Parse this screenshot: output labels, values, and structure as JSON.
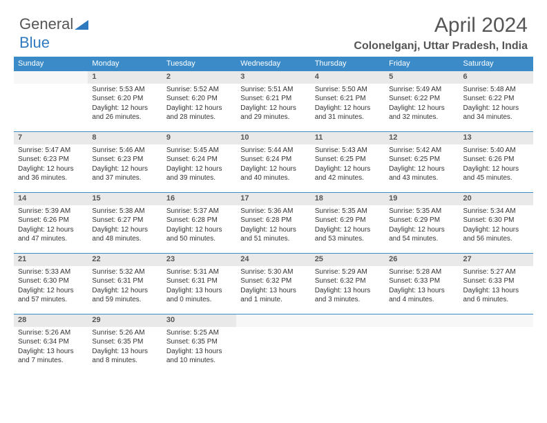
{
  "logo": {
    "text1": "General",
    "text2": "Blue"
  },
  "title": "April 2024",
  "location": "Colonelganj, Uttar Pradesh, India",
  "headers": [
    "Sunday",
    "Monday",
    "Tuesday",
    "Wednesday",
    "Thursday",
    "Friday",
    "Saturday"
  ],
  "colors": {
    "header_bg": "#3b8bc9",
    "header_text": "#ffffff",
    "daynum_bg": "#e9e9e9",
    "border": "#3b8bc9",
    "text": "#333333",
    "title_text": "#555555"
  },
  "weeks": [
    [
      {
        "empty": true
      },
      {
        "num": "1",
        "sunrise": "Sunrise: 5:53 AM",
        "sunset": "Sunset: 6:20 PM",
        "day1": "Daylight: 12 hours",
        "day2": "and 26 minutes."
      },
      {
        "num": "2",
        "sunrise": "Sunrise: 5:52 AM",
        "sunset": "Sunset: 6:20 PM",
        "day1": "Daylight: 12 hours",
        "day2": "and 28 minutes."
      },
      {
        "num": "3",
        "sunrise": "Sunrise: 5:51 AM",
        "sunset": "Sunset: 6:21 PM",
        "day1": "Daylight: 12 hours",
        "day2": "and 29 minutes."
      },
      {
        "num": "4",
        "sunrise": "Sunrise: 5:50 AM",
        "sunset": "Sunset: 6:21 PM",
        "day1": "Daylight: 12 hours",
        "day2": "and 31 minutes."
      },
      {
        "num": "5",
        "sunrise": "Sunrise: 5:49 AM",
        "sunset": "Sunset: 6:22 PM",
        "day1": "Daylight: 12 hours",
        "day2": "and 32 minutes."
      },
      {
        "num": "6",
        "sunrise": "Sunrise: 5:48 AM",
        "sunset": "Sunset: 6:22 PM",
        "day1": "Daylight: 12 hours",
        "day2": "and 34 minutes."
      }
    ],
    [
      {
        "num": "7",
        "sunrise": "Sunrise: 5:47 AM",
        "sunset": "Sunset: 6:23 PM",
        "day1": "Daylight: 12 hours",
        "day2": "and 36 minutes."
      },
      {
        "num": "8",
        "sunrise": "Sunrise: 5:46 AM",
        "sunset": "Sunset: 6:23 PM",
        "day1": "Daylight: 12 hours",
        "day2": "and 37 minutes."
      },
      {
        "num": "9",
        "sunrise": "Sunrise: 5:45 AM",
        "sunset": "Sunset: 6:24 PM",
        "day1": "Daylight: 12 hours",
        "day2": "and 39 minutes."
      },
      {
        "num": "10",
        "sunrise": "Sunrise: 5:44 AM",
        "sunset": "Sunset: 6:24 PM",
        "day1": "Daylight: 12 hours",
        "day2": "and 40 minutes."
      },
      {
        "num": "11",
        "sunrise": "Sunrise: 5:43 AM",
        "sunset": "Sunset: 6:25 PM",
        "day1": "Daylight: 12 hours",
        "day2": "and 42 minutes."
      },
      {
        "num": "12",
        "sunrise": "Sunrise: 5:42 AM",
        "sunset": "Sunset: 6:25 PM",
        "day1": "Daylight: 12 hours",
        "day2": "and 43 minutes."
      },
      {
        "num": "13",
        "sunrise": "Sunrise: 5:40 AM",
        "sunset": "Sunset: 6:26 PM",
        "day1": "Daylight: 12 hours",
        "day2": "and 45 minutes."
      }
    ],
    [
      {
        "num": "14",
        "sunrise": "Sunrise: 5:39 AM",
        "sunset": "Sunset: 6:26 PM",
        "day1": "Daylight: 12 hours",
        "day2": "and 47 minutes."
      },
      {
        "num": "15",
        "sunrise": "Sunrise: 5:38 AM",
        "sunset": "Sunset: 6:27 PM",
        "day1": "Daylight: 12 hours",
        "day2": "and 48 minutes."
      },
      {
        "num": "16",
        "sunrise": "Sunrise: 5:37 AM",
        "sunset": "Sunset: 6:28 PM",
        "day1": "Daylight: 12 hours",
        "day2": "and 50 minutes."
      },
      {
        "num": "17",
        "sunrise": "Sunrise: 5:36 AM",
        "sunset": "Sunset: 6:28 PM",
        "day1": "Daylight: 12 hours",
        "day2": "and 51 minutes."
      },
      {
        "num": "18",
        "sunrise": "Sunrise: 5:35 AM",
        "sunset": "Sunset: 6:29 PM",
        "day1": "Daylight: 12 hours",
        "day2": "and 53 minutes."
      },
      {
        "num": "19",
        "sunrise": "Sunrise: 5:35 AM",
        "sunset": "Sunset: 6:29 PM",
        "day1": "Daylight: 12 hours",
        "day2": "and 54 minutes."
      },
      {
        "num": "20",
        "sunrise": "Sunrise: 5:34 AM",
        "sunset": "Sunset: 6:30 PM",
        "day1": "Daylight: 12 hours",
        "day2": "and 56 minutes."
      }
    ],
    [
      {
        "num": "21",
        "sunrise": "Sunrise: 5:33 AM",
        "sunset": "Sunset: 6:30 PM",
        "day1": "Daylight: 12 hours",
        "day2": "and 57 minutes."
      },
      {
        "num": "22",
        "sunrise": "Sunrise: 5:32 AM",
        "sunset": "Sunset: 6:31 PM",
        "day1": "Daylight: 12 hours",
        "day2": "and 59 minutes."
      },
      {
        "num": "23",
        "sunrise": "Sunrise: 5:31 AM",
        "sunset": "Sunset: 6:31 PM",
        "day1": "Daylight: 13 hours",
        "day2": "and 0 minutes."
      },
      {
        "num": "24",
        "sunrise": "Sunrise: 5:30 AM",
        "sunset": "Sunset: 6:32 PM",
        "day1": "Daylight: 13 hours",
        "day2": "and 1 minute."
      },
      {
        "num": "25",
        "sunrise": "Sunrise: 5:29 AM",
        "sunset": "Sunset: 6:32 PM",
        "day1": "Daylight: 13 hours",
        "day2": "and 3 minutes."
      },
      {
        "num": "26",
        "sunrise": "Sunrise: 5:28 AM",
        "sunset": "Sunset: 6:33 PM",
        "day1": "Daylight: 13 hours",
        "day2": "and 4 minutes."
      },
      {
        "num": "27",
        "sunrise": "Sunrise: 5:27 AM",
        "sunset": "Sunset: 6:33 PM",
        "day1": "Daylight: 13 hours",
        "day2": "and 6 minutes."
      }
    ],
    [
      {
        "num": "28",
        "sunrise": "Sunrise: 5:26 AM",
        "sunset": "Sunset: 6:34 PM",
        "day1": "Daylight: 13 hours",
        "day2": "and 7 minutes."
      },
      {
        "num": "29",
        "sunrise": "Sunrise: 5:26 AM",
        "sunset": "Sunset: 6:35 PM",
        "day1": "Daylight: 13 hours",
        "day2": "and 8 minutes."
      },
      {
        "num": "30",
        "sunrise": "Sunrise: 5:25 AM",
        "sunset": "Sunset: 6:35 PM",
        "day1": "Daylight: 13 hours",
        "day2": "and 10 minutes."
      },
      {
        "empty": true
      },
      {
        "empty": true
      },
      {
        "empty": true
      },
      {
        "empty": true
      }
    ]
  ]
}
